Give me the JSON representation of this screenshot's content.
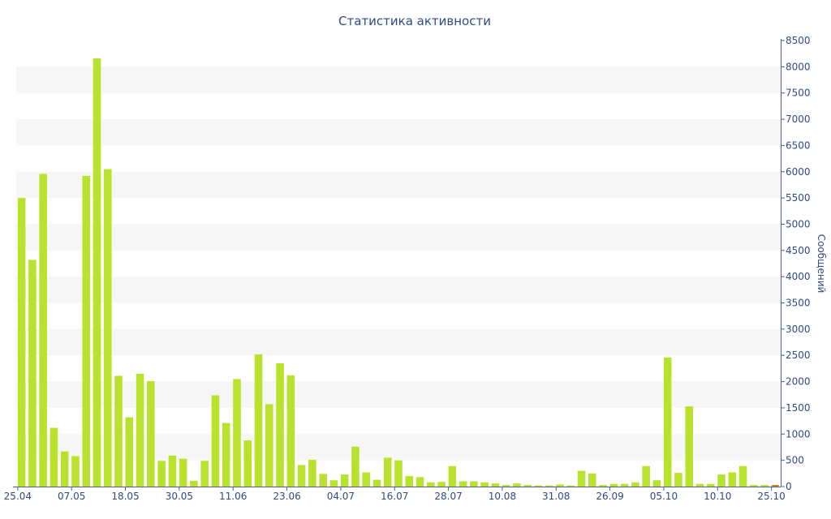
{
  "colors": {
    "bar": "#b9e22f",
    "stripe": "#f6f6f6",
    "axis_text": "#2f4a87",
    "axis_line": "#4a5f95",
    "marker": "#e07b2a"
  },
  "chart_data": {
    "type": "bar",
    "title": "Статистика активности",
    "xlabel": "",
    "ylabel": "Сообщений",
    "y_axis_side": "right",
    "grid": "alternating horizontal bands",
    "legend": "none",
    "ylim": [
      0,
      8500
    ],
    "yticks": [
      0,
      500,
      1000,
      1500,
      2000,
      2500,
      3000,
      3500,
      4000,
      4500,
      5000,
      5500,
      6000,
      6500,
      7000,
      7500,
      8000,
      8500
    ],
    "xtick_labels": [
      {
        "label": "25.04",
        "index": 0
      },
      {
        "label": "07.05",
        "index": 5
      },
      {
        "label": "18.05",
        "index": 10
      },
      {
        "label": "30.05",
        "index": 15
      },
      {
        "label": "11.06",
        "index": 20
      },
      {
        "label": "23.06",
        "index": 25
      },
      {
        "label": "04.07",
        "index": 30
      },
      {
        "label": "16.07",
        "index": 35
      },
      {
        "label": "28.07",
        "index": 40
      },
      {
        "label": "10.08",
        "index": 45
      },
      {
        "label": "31.08",
        "index": 50
      },
      {
        "label": "26.09",
        "index": 55
      },
      {
        "label": "05.10",
        "index": 60
      },
      {
        "label": "10.10",
        "index": 65
      },
      {
        "label": "25.10",
        "index": 70
      }
    ],
    "values": [
      5500,
      4320,
      5960,
      1120,
      670,
      580,
      5920,
      8160,
      6050,
      2110,
      1320,
      2150,
      2010,
      490,
      590,
      530,
      110,
      490,
      1740,
      1210,
      2050,
      880,
      2520,
      1570,
      2350,
      2120,
      410,
      510,
      240,
      120,
      230,
      760,
      270,
      130,
      550,
      500,
      200,
      180,
      80,
      90,
      390,
      100,
      100,
      80,
      60,
      30,
      60,
      30,
      20,
      20,
      40,
      20,
      300,
      250,
      30,
      50,
      50,
      80,
      390,
      120,
      2460,
      260,
      1530,
      50,
      50,
      230,
      270,
      390,
      30,
      30,
      30
    ]
  }
}
